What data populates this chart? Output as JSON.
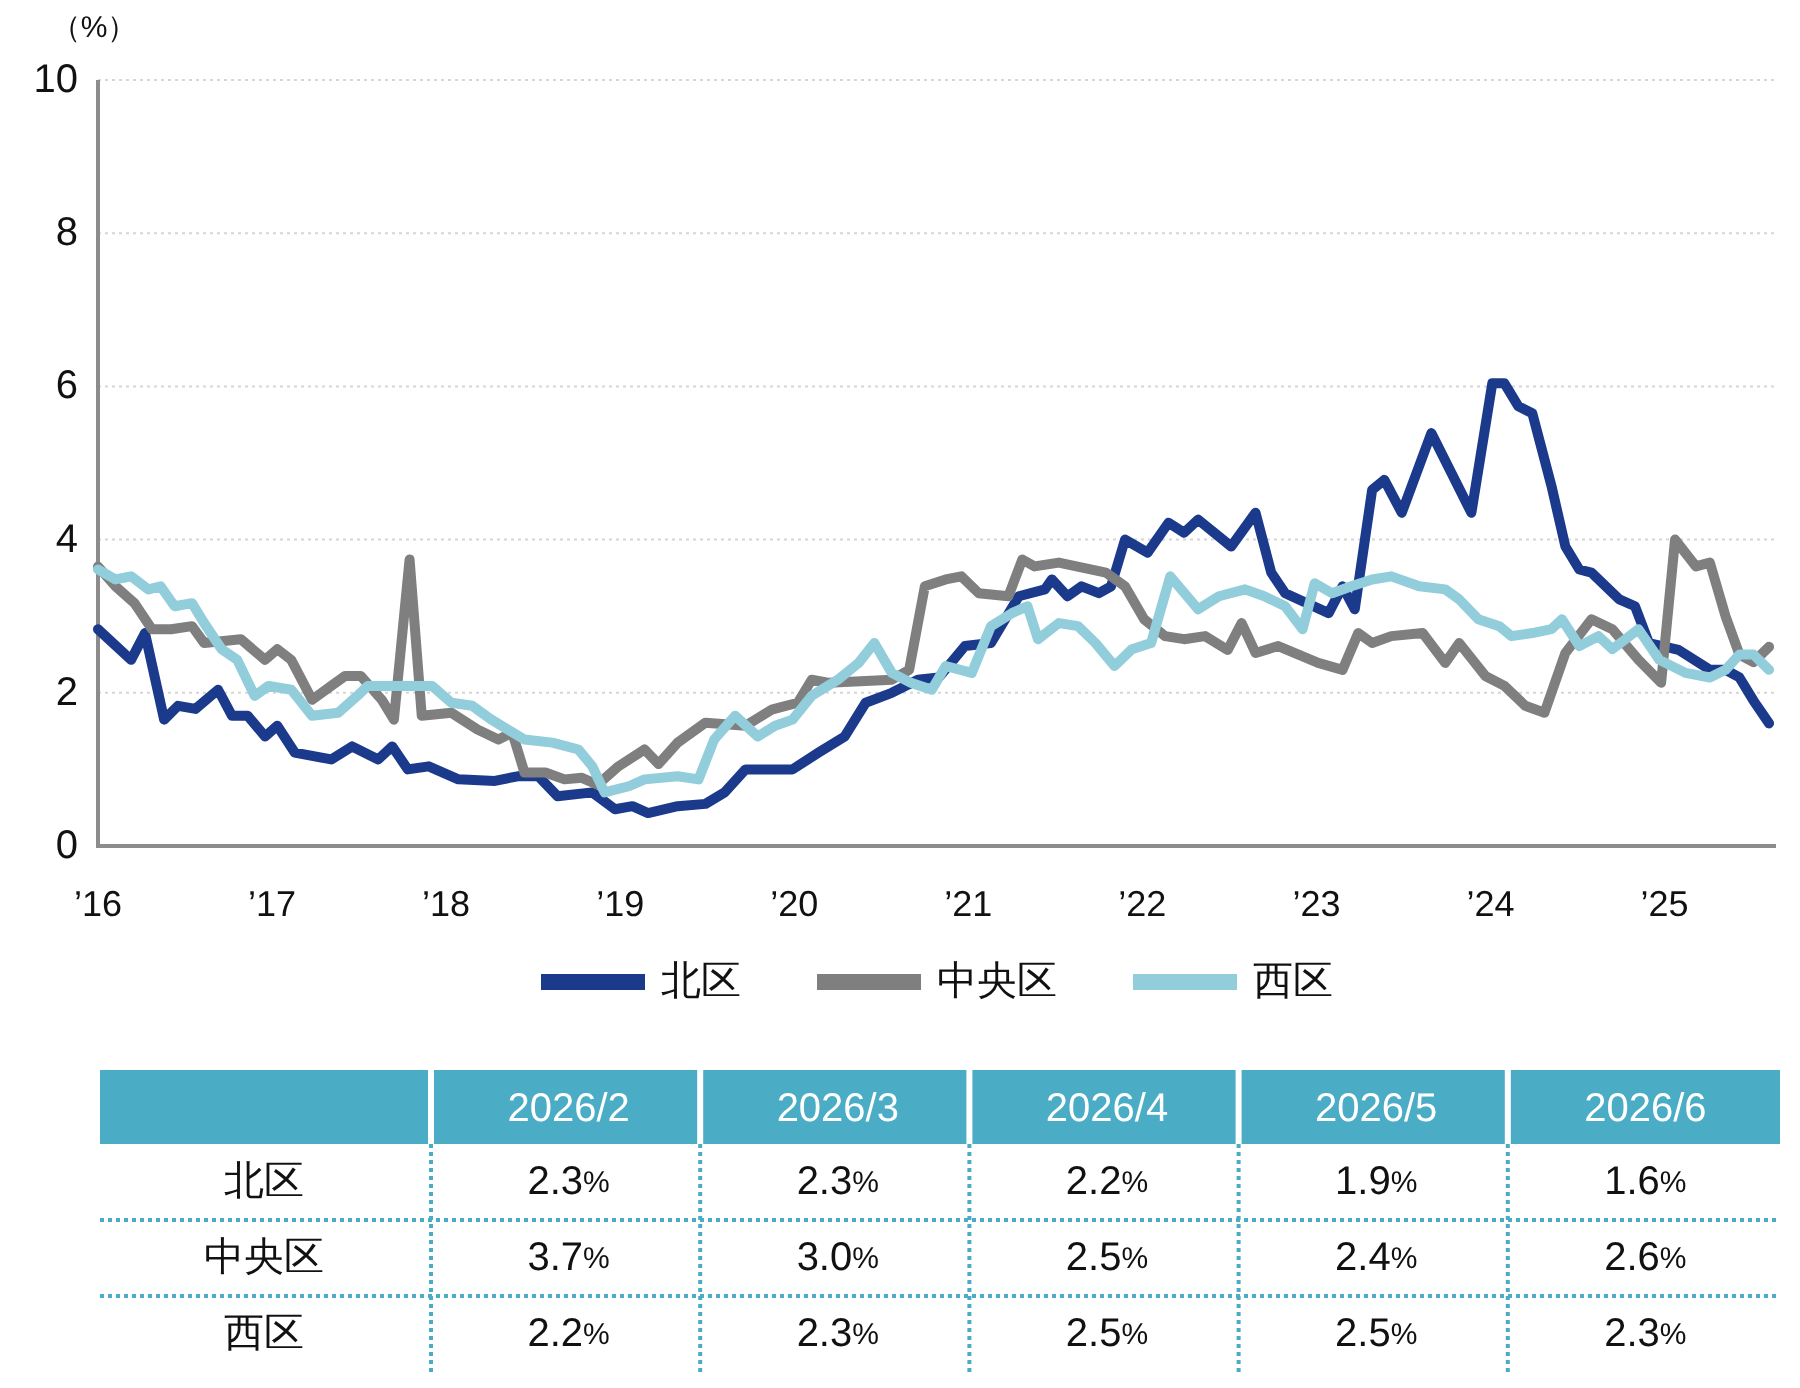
{
  "chart_data": [
    {
      "type": "line",
      "ylabel": "（%）",
      "xlim": [
        2016,
        2025.64
      ],
      "xticks": [
        {
          "value": 2016,
          "label": "’16"
        },
        {
          "value": 2017,
          "label": "’17"
        },
        {
          "value": 2018,
          "label": "’18"
        },
        {
          "value": 2019,
          "label": "’19"
        },
        {
          "value": 2020,
          "label": "’20"
        },
        {
          "value": 2021,
          "label": "’21"
        },
        {
          "value": 2022,
          "label": "’22"
        },
        {
          "value": 2023,
          "label": "’23"
        },
        {
          "value": 2024,
          "label": "’24"
        },
        {
          "value": 2025,
          "label": "’25"
        }
      ],
      "ylim": [
        0,
        10
      ],
      "yticks": [
        0,
        2,
        4,
        6,
        8,
        10
      ],
      "grid": "y",
      "legend": "bottom",
      "series": [
        {
          "name": "北区",
          "color": "#1b3a8c",
          "x": [
            2016.0,
            2016.19,
            2016.27,
            2016.38,
            2016.46,
            2016.56,
            2016.69,
            2016.77,
            2016.86,
            2016.96,
            2017.03,
            2017.13,
            2017.34,
            2017.46,
            2017.61,
            2017.69,
            2017.78,
            2017.9,
            2018.07,
            2018.28,
            2018.41,
            2018.53,
            2018.64,
            2018.84,
            2018.97,
            2019.07,
            2019.16,
            2019.33,
            2019.49,
            2019.6,
            2019.72,
            2019.99,
            2020.14,
            2020.29,
            2020.41,
            2020.56,
            2020.71,
            2020.83,
            2020.98,
            2021.13,
            2021.29,
            2021.44,
            2021.48,
            2021.57,
            2021.65,
            2021.75,
            2021.82,
            2021.9,
            2022.03,
            2022.15,
            2022.24,
            2022.32,
            2022.51,
            2022.65,
            2022.74,
            2022.82,
            2023.07,
            2023.15,
            2023.22,
            2023.32,
            2023.39,
            2023.49,
            2023.66,
            2023.89,
            2024.01,
            2024.08,
            2024.16,
            2024.24,
            2024.35,
            2024.43,
            2024.51,
            2024.58,
            2024.74,
            2024.83,
            2024.91,
            2025.08,
            2025.26,
            2025.35,
            2025.43,
            2025.51,
            2025.6
          ],
          "values": [
            2.83,
            2.43,
            2.78,
            1.65,
            1.83,
            1.79,
            2.04,
            1.7,
            1.7,
            1.43,
            1.57,
            1.22,
            1.13,
            1.3,
            1.13,
            1.3,
            1.0,
            1.04,
            0.87,
            0.85,
            0.91,
            0.91,
            0.65,
            0.7,
            0.48,
            0.52,
            0.43,
            0.52,
            0.55,
            0.7,
            1.0,
            1.0,
            1.22,
            1.43,
            1.87,
            2.0,
            2.17,
            2.2,
            2.61,
            2.65,
            3.26,
            3.35,
            3.48,
            3.26,
            3.39,
            3.3,
            3.39,
            4.0,
            3.83,
            4.22,
            4.09,
            4.26,
            3.91,
            4.35,
            3.57,
            3.3,
            3.04,
            3.39,
            3.09,
            4.65,
            4.78,
            4.35,
            5.39,
            4.35,
            6.04,
            6.04,
            5.74,
            5.65,
            4.7,
            3.91,
            3.61,
            3.57,
            3.22,
            3.13,
            2.65,
            2.56,
            2.3,
            2.3,
            2.2,
            1.9,
            1.6
          ]
        },
        {
          "name": "中央区",
          "color": "#7f7f7f",
          "x": [
            2016.0,
            2016.1,
            2016.21,
            2016.31,
            2016.42,
            2016.54,
            2016.61,
            2016.82,
            2016.96,
            2017.03,
            2017.11,
            2017.23,
            2017.34,
            2017.42,
            2017.51,
            2017.63,
            2017.7,
            2017.79,
            2017.86,
            2018.03,
            2018.18,
            2018.3,
            2018.38,
            2018.45,
            2018.57,
            2018.68,
            2018.78,
            2018.87,
            2018.99,
            2019.14,
            2019.22,
            2019.33,
            2019.49,
            2019.72,
            2019.87,
            2020.02,
            2020.1,
            2020.2,
            2020.56,
            2020.66,
            2020.75,
            2020.87,
            2020.96,
            2021.06,
            2021.23,
            2021.31,
            2021.38,
            2021.52,
            2021.79,
            2021.9,
            2022.01,
            2022.13,
            2022.24,
            2022.36,
            2022.49,
            2022.57,
            2022.65,
            2022.78,
            2023.01,
            2023.15,
            2023.24,
            2023.32,
            2023.43,
            2023.61,
            2023.74,
            2023.82,
            2023.97,
            2024.08,
            2024.2,
            2024.31,
            2024.43,
            2024.58,
            2024.7,
            2024.85,
            2024.98,
            2025.06,
            2025.18,
            2025.26,
            2025.35,
            2025.43,
            2025.51,
            2025.6
          ],
          "values": [
            3.65,
            3.39,
            3.17,
            2.83,
            2.83,
            2.87,
            2.65,
            2.7,
            2.43,
            2.57,
            2.43,
            1.91,
            2.09,
            2.22,
            2.22,
            1.91,
            1.65,
            3.74,
            1.7,
            1.74,
            1.52,
            1.39,
            1.48,
            0.96,
            0.96,
            0.87,
            0.89,
            0.8,
            1.04,
            1.26,
            1.07,
            1.35,
            1.61,
            1.57,
            1.78,
            1.87,
            2.17,
            2.13,
            2.17,
            2.3,
            3.39,
            3.48,
            3.52,
            3.3,
            3.26,
            3.74,
            3.65,
            3.7,
            3.57,
            3.39,
            2.96,
            2.74,
            2.7,
            2.74,
            2.56,
            2.91,
            2.52,
            2.61,
            2.39,
            2.3,
            2.78,
            2.65,
            2.74,
            2.78,
            2.39,
            2.65,
            2.22,
            2.09,
            1.83,
            1.74,
            2.52,
            2.96,
            2.83,
            2.43,
            2.13,
            4.0,
            3.65,
            3.7,
            3.0,
            2.5,
            2.4,
            2.6
          ]
        },
        {
          "name": "西区",
          "color": "#92cddc",
          "x": [
            2016.0,
            2016.1,
            2016.19,
            2016.29,
            2016.36,
            2016.44,
            2016.54,
            2016.61,
            2016.71,
            2016.8,
            2016.9,
            2016.98,
            2017.11,
            2017.23,
            2017.38,
            2017.49,
            2017.55,
            2017.92,
            2018.03,
            2018.15,
            2018.26,
            2018.45,
            2018.61,
            2018.76,
            2018.84,
            2018.91,
            2019.05,
            2019.14,
            2019.33,
            2019.45,
            2019.54,
            2019.66,
            2019.79,
            2019.89,
            2019.99,
            2020.1,
            2020.25,
            2020.37,
            2020.46,
            2020.56,
            2020.67,
            2020.79,
            2020.87,
            2021.02,
            2021.13,
            2021.25,
            2021.34,
            2021.4,
            2021.52,
            2021.63,
            2021.73,
            2021.84,
            2021.94,
            2022.05,
            2022.16,
            2022.32,
            2022.44,
            2022.59,
            2022.7,
            2022.82,
            2022.92,
            2022.99,
            2023.09,
            2023.2,
            2023.32,
            2023.43,
            2023.59,
            2023.74,
            2023.82,
            2023.93,
            2024.05,
            2024.12,
            2024.24,
            2024.35,
            2024.41,
            2024.51,
            2024.62,
            2024.7,
            2024.85,
            2024.97,
            2025.12,
            2025.26,
            2025.35,
            2025.43,
            2025.51,
            2025.6
          ],
          "values": [
            3.61,
            3.48,
            3.52,
            3.35,
            3.39,
            3.13,
            3.17,
            2.91,
            2.57,
            2.43,
            1.96,
            2.09,
            2.04,
            1.7,
            1.74,
            1.96,
            2.09,
            2.09,
            1.87,
            1.83,
            1.65,
            1.39,
            1.35,
            1.26,
            1.04,
            0.7,
            0.78,
            0.87,
            0.91,
            0.87,
            1.39,
            1.7,
            1.43,
            1.57,
            1.65,
            1.96,
            2.17,
            2.39,
            2.65,
            2.26,
            2.13,
            2.04,
            2.35,
            2.26,
            2.87,
            3.04,
            3.13,
            2.7,
            2.91,
            2.87,
            2.65,
            2.35,
            2.57,
            2.65,
            3.52,
            3.09,
            3.26,
            3.35,
            3.26,
            3.13,
            2.83,
            3.43,
            3.3,
            3.39,
            3.48,
            3.52,
            3.39,
            3.35,
            3.22,
            2.96,
            2.87,
            2.74,
            2.78,
            2.83,
            2.96,
            2.61,
            2.74,
            2.57,
            2.83,
            2.43,
            2.26,
            2.2,
            2.3,
            2.5,
            2.5,
            2.3
          ]
        }
      ]
    },
    {
      "type": "other",
      "categories": [
        "2026/2",
        "2026/3",
        "2026/4",
        "2026/5",
        "2026/6"
      ],
      "series": [
        {
          "name": "北区",
          "values": [
            2.3,
            2.3,
            2.2,
            1.9,
            1.6
          ],
          "value_labels": [
            "2.3%",
            "2.3%",
            "2.2%",
            "1.9%",
            "1.6%"
          ]
        },
        {
          "name": "中央区",
          "values": [
            3.7,
            3.0,
            2.5,
            2.4,
            2.6
          ],
          "value_labels": [
            "3.7%",
            "3.0%",
            "2.5%",
            "2.4%",
            "2.6%"
          ]
        },
        {
          "name": "西区",
          "values": [
            2.2,
            2.3,
            2.5,
            2.5,
            2.3
          ],
          "value_labels": [
            "2.2%",
            "2.3%",
            "2.5%",
            "2.5%",
            "2.3%"
          ]
        }
      ]
    }
  ]
}
